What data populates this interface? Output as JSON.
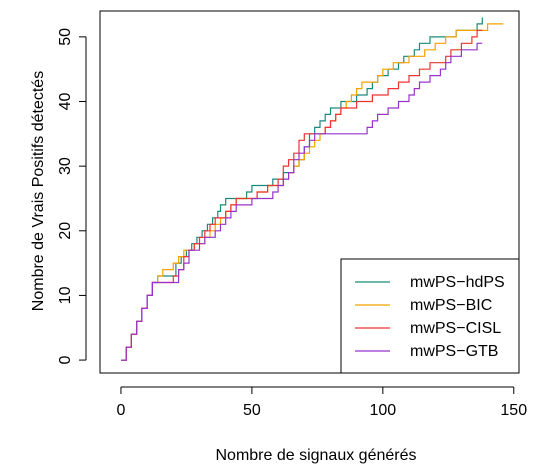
{
  "chart_data": {
    "type": "line",
    "xlabel": "Nombre de signaux générés",
    "ylabel": "Nombre de Vrais Positifs détectés",
    "xlim": [
      -8,
      152
    ],
    "ylim": [
      -2,
      54
    ],
    "xticks": [
      0,
      50,
      100,
      150
    ],
    "yticks": [
      0,
      10,
      20,
      30,
      40,
      50
    ],
    "legend_position": "bottom-right",
    "grid": false,
    "series": [
      {
        "name": "mwPS−hdPS",
        "color": "#1a8a7a",
        "x": [
          0,
          2,
          4,
          6,
          8,
          10,
          12,
          14,
          18,
          21,
          23,
          25,
          27,
          29,
          31,
          33,
          35,
          37,
          38,
          40,
          42,
          44,
          46,
          48,
          50,
          52,
          54,
          56,
          58,
          60,
          62,
          64,
          66,
          68,
          70,
          72,
          74,
          76,
          78,
          80,
          82,
          84,
          86,
          88,
          90,
          92,
          94,
          96,
          98,
          100,
          102,
          104,
          106,
          108,
          110,
          112,
          114,
          116,
          118,
          120,
          122,
          124,
          126,
          128,
          130,
          132,
          134,
          136,
          137,
          138
        ],
        "y": [
          0,
          2,
          4,
          6,
          8,
          10,
          12,
          13,
          13,
          15,
          16,
          17,
          18,
          19,
          20,
          21,
          22,
          23,
          24,
          25,
          25,
          25,
          25,
          26,
          27,
          27,
          27,
          27,
          28,
          28,
          29,
          29,
          30,
          31,
          33,
          35,
          36,
          37,
          38,
          39,
          39,
          40,
          40,
          40,
          41,
          41,
          42,
          43,
          44,
          44,
          45,
          45,
          46,
          47,
          47,
          48,
          49,
          49,
          50,
          50,
          50,
          50,
          50,
          51,
          51,
          51,
          51,
          52,
          52,
          53
        ]
      },
      {
        "name": "mwPS−BIC",
        "color": "#f5a200",
        "x": [
          0,
          2,
          4,
          6,
          8,
          10,
          12,
          14,
          16,
          18,
          20,
          22,
          24,
          26,
          28,
          30,
          32,
          34,
          36,
          38,
          40,
          42,
          44,
          46,
          48,
          50,
          52,
          54,
          56,
          58,
          60,
          62,
          64,
          66,
          68,
          70,
          72,
          74,
          76,
          78,
          80,
          82,
          84,
          86,
          88,
          90,
          92,
          94,
          96,
          98,
          100,
          102,
          104,
          106,
          108,
          110,
          112,
          114,
          116,
          118,
          120,
          122,
          124,
          126,
          128,
          130,
          132,
          134,
          136,
          138,
          140,
          142,
          144,
          146
        ],
        "y": [
          0,
          2,
          4,
          6,
          8,
          10,
          12,
          13,
          14,
          14,
          15,
          16,
          17,
          17,
          18,
          18,
          19,
          20,
          21,
          22,
          23,
          24,
          25,
          25,
          25,
          25,
          26,
          26,
          27,
          27,
          27,
          28,
          29,
          30,
          31,
          32,
          33,
          34,
          35,
          36,
          37,
          38,
          39,
          40,
          41,
          42,
          43,
          43,
          43,
          44,
          45,
          45,
          46,
          46,
          46,
          47,
          47,
          47,
          48,
          48,
          49,
          49,
          50,
          50,
          51,
          51,
          51,
          51,
          51,
          51,
          52,
          52,
          52,
          52
        ]
      },
      {
        "name": "mwPS−CISL",
        "color": "#ee3333",
        "x": [
          0,
          2,
          4,
          6,
          8,
          10,
          12,
          14,
          16,
          18,
          20,
          22,
          24,
          26,
          28,
          30,
          32,
          34,
          36,
          38,
          40,
          42,
          44,
          46,
          48,
          50,
          52,
          54,
          56,
          58,
          60,
          62,
          64,
          66,
          68,
          70,
          72,
          74,
          76,
          78,
          80,
          82,
          84,
          86,
          88,
          90,
          92,
          94,
          96,
          98,
          100,
          102,
          104,
          106,
          108,
          110,
          112,
          114,
          116,
          118,
          120,
          122,
          124,
          126,
          128,
          130,
          132,
          134,
          136,
          138
        ],
        "y": [
          0,
          2,
          4,
          6,
          8,
          10,
          12,
          12,
          12,
          12,
          13,
          14,
          16,
          17,
          18,
          19,
          20,
          21,
          22,
          22,
          23,
          24,
          25,
          25,
          25,
          25,
          26,
          26,
          27,
          27,
          28,
          30,
          31,
          32,
          34,
          35,
          35,
          35,
          35,
          36,
          37,
          38,
          39,
          39,
          39,
          40,
          40,
          40,
          41,
          41,
          41,
          42,
          42,
          43,
          43,
          44,
          44,
          45,
          45,
          46,
          46,
          46,
          47,
          48,
          48,
          49,
          49,
          50,
          51,
          51
        ]
      },
      {
        "name": "mwPS−GTB",
        "color": "#9933cc",
        "x": [
          0,
          2,
          4,
          6,
          8,
          10,
          12,
          14,
          16,
          18,
          20,
          22,
          24,
          26,
          28,
          30,
          32,
          34,
          36,
          38,
          40,
          42,
          44,
          46,
          48,
          50,
          52,
          54,
          56,
          58,
          60,
          62,
          64,
          66,
          68,
          70,
          72,
          74,
          76,
          78,
          80,
          82,
          84,
          86,
          88,
          90,
          92,
          94,
          96,
          98,
          100,
          102,
          104,
          106,
          108,
          110,
          112,
          114,
          116,
          118,
          120,
          122,
          124,
          126,
          128,
          130,
          132,
          134,
          136,
          138
        ],
        "y": [
          0,
          2,
          4,
          6,
          8,
          10,
          12,
          12,
          12,
          12,
          12,
          14,
          15,
          17,
          17,
          18,
          19,
          19,
          20,
          21,
          22,
          23,
          24,
          24,
          24,
          25,
          25,
          25,
          25,
          26,
          27,
          28,
          29,
          31,
          32,
          33,
          34,
          35,
          35,
          35,
          35,
          35,
          35,
          35,
          35,
          35,
          35,
          36,
          37,
          38,
          38,
          39,
          39,
          40,
          40,
          41,
          42,
          43,
          43,
          44,
          44,
          45,
          46,
          47,
          47,
          48,
          48,
          48,
          49,
          49
        ]
      }
    ]
  }
}
